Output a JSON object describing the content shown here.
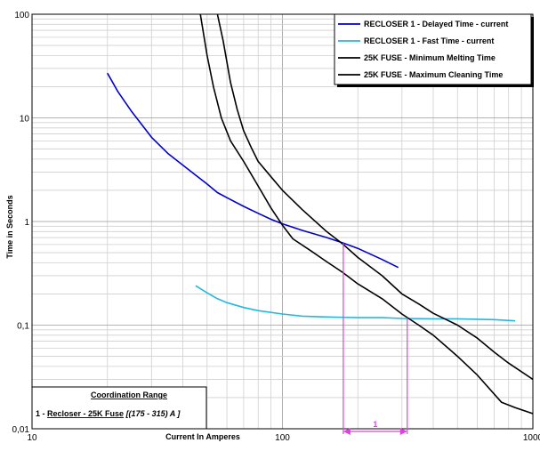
{
  "chart_data": {
    "type": "line",
    "x_scale": "log",
    "y_scale": "log",
    "xlim": [
      10,
      1000
    ],
    "ylim": [
      0.01,
      100
    ],
    "xlabel": "Current In Amperes",
    "ylabel": "Time in Seconds",
    "x_tick_labels": [
      "10",
      "100",
      "1000"
    ],
    "y_tick_labels": [
      "0,01",
      "0,1",
      "1",
      "10",
      "100"
    ],
    "grid": true,
    "legend_placement": "top-right",
    "series": [
      {
        "name": "RECLOSER 1 - Delayed Time - current",
        "color": "#0000cc",
        "points": [
          [
            20,
            27
          ],
          [
            22,
            18
          ],
          [
            25,
            11.5
          ],
          [
            30,
            6.5
          ],
          [
            35,
            4.5
          ],
          [
            40,
            3.5
          ],
          [
            45,
            2.8
          ],
          [
            50,
            2.3
          ],
          [
            55,
            1.9
          ],
          [
            60,
            1.7
          ],
          [
            70,
            1.4
          ],
          [
            80,
            1.2
          ],
          [
            90,
            1.05
          ],
          [
            100,
            0.95
          ],
          [
            120,
            0.82
          ],
          [
            150,
            0.7
          ],
          [
            175,
            0.62
          ],
          [
            200,
            0.55
          ],
          [
            250,
            0.43
          ],
          [
            290,
            0.36
          ]
        ]
      },
      {
        "name": "RECLOSER 1 - Fast Time - current",
        "color": "#22b8e0",
        "points": [
          [
            45,
            0.24
          ],
          [
            50,
            0.205
          ],
          [
            55,
            0.18
          ],
          [
            60,
            0.165
          ],
          [
            70,
            0.148
          ],
          [
            80,
            0.138
          ],
          [
            100,
            0.128
          ],
          [
            120,
            0.122
          ],
          [
            150,
            0.12
          ],
          [
            200,
            0.118
          ],
          [
            250,
            0.118
          ],
          [
            300,
            0.116
          ],
          [
            400,
            0.115
          ],
          [
            500,
            0.115
          ],
          [
            600,
            0.114
          ],
          [
            700,
            0.113
          ],
          [
            850,
            0.11
          ]
        ]
      },
      {
        "name": "25K FUSE - Minimum Melting Time",
        "color": "#000000",
        "points": [
          [
            47,
            100
          ],
          [
            50,
            40
          ],
          [
            53,
            20
          ],
          [
            57,
            10
          ],
          [
            62,
            6
          ],
          [
            70,
            3.8
          ],
          [
            80,
            2.2
          ],
          [
            90,
            1.35
          ],
          [
            100,
            0.92
          ],
          [
            110,
            0.68
          ],
          [
            130,
            0.52
          ],
          [
            150,
            0.41
          ],
          [
            175,
            0.32
          ],
          [
            200,
            0.25
          ],
          [
            250,
            0.18
          ],
          [
            300,
            0.128
          ],
          [
            350,
            0.1
          ],
          [
            400,
            0.08
          ],
          [
            500,
            0.05
          ],
          [
            600,
            0.033
          ],
          [
            750,
            0.018
          ],
          [
            850,
            0.016
          ],
          [
            1000,
            0.014
          ]
        ]
      },
      {
        "name": "25K FUSE - Maximum Cleaning Time",
        "color": "#000000",
        "points": [
          [
            55,
            100
          ],
          [
            58,
            55
          ],
          [
            62,
            22
          ],
          [
            66,
            12
          ],
          [
            70,
            7.5
          ],
          [
            75,
            5.2
          ],
          [
            80,
            3.8
          ],
          [
            90,
            2.7
          ],
          [
            100,
            2
          ],
          [
            120,
            1.3
          ],
          [
            150,
            0.8
          ],
          [
            175,
            0.6
          ],
          [
            200,
            0.45
          ],
          [
            250,
            0.3
          ],
          [
            300,
            0.2
          ],
          [
            350,
            0.16
          ],
          [
            400,
            0.13
          ],
          [
            500,
            0.1
          ],
          [
            600,
            0.075
          ],
          [
            700,
            0.055
          ],
          [
            800,
            0.043
          ],
          [
            1000,
            0.03
          ]
        ]
      }
    ],
    "coordination_range": {
      "title": "Coordination Range",
      "prefix": "1 - ",
      "underlined_text": "Recloser -   25K Fuse",
      "range_text": " [(175 - 315) A ]",
      "from": 175,
      "to": 315,
      "label": "1",
      "color": "#e040e0"
    }
  }
}
